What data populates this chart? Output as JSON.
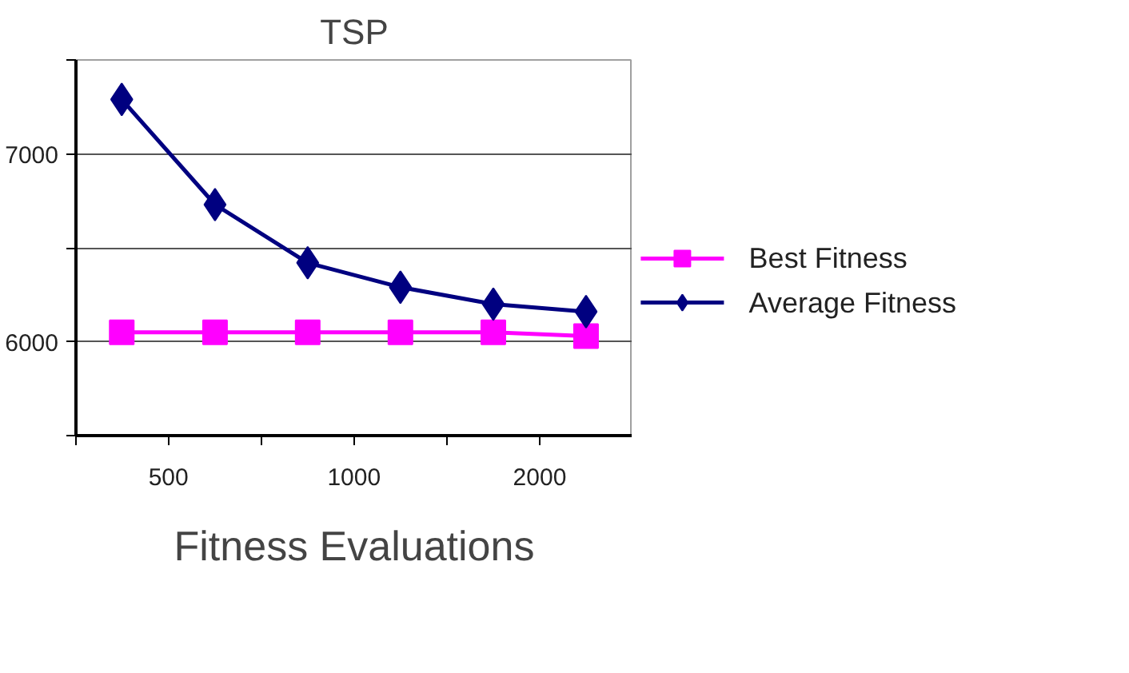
{
  "chart_data": {
    "type": "line",
    "title": "TSP",
    "xlabel": "Fitness Evaluations",
    "x": [
      420,
      595,
      841,
      1189,
      1682,
      2378
    ],
    "log": "x",
    "xlim": [
      354,
      2828
    ],
    "xticks": [
      {
        "value": 354,
        "label": null
      },
      500,
      {
        "value": 707,
        "label": null
      },
      1000,
      {
        "value": 1414,
        "label": null
      },
      2000,
      {
        "value": 2828,
        "label": null
      }
    ],
    "ylim": [
      5500,
      7500
    ],
    "yticks": [
      {
        "value": 5500,
        "label": null
      },
      6000,
      {
        "value": 6500,
        "label": null
      },
      7000,
      {
        "value": 7500,
        "label": null
      }
    ],
    "series": [
      {
        "name": "Best Fitness",
        "color": "#ff00ff",
        "marker": "square",
        "values": [
          6050,
          6050,
          6050,
          6050,
          6050,
          6030
        ]
      },
      {
        "name": "Average Fitness",
        "color": "#000080",
        "marker": "diamond",
        "values": [
          7290,
          6730,
          6420,
          6290,
          6200,
          6160
        ]
      }
    ],
    "grid": "y",
    "legend": "right"
  }
}
